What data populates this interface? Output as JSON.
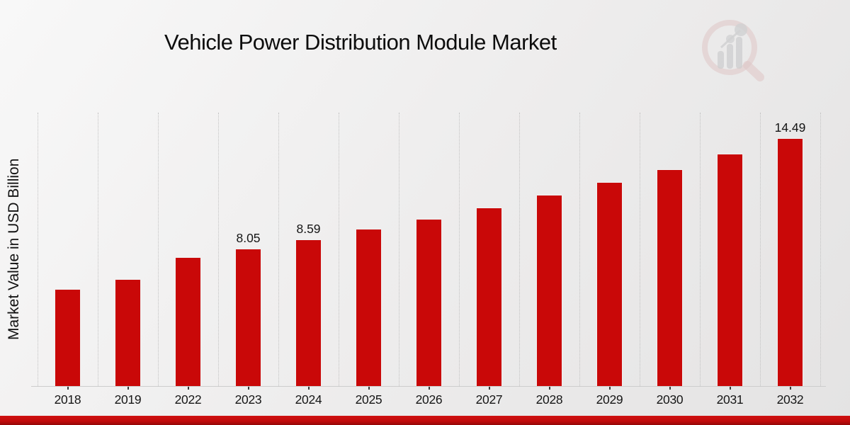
{
  "header": {
    "title": "Vehicle Power Distribution Module Market"
  },
  "y_axis": {
    "label": "Market Value in USD Billion"
  },
  "logo": {
    "name": "market-research-future-watermark"
  },
  "colors": {
    "bar": "#c90808",
    "accent_strip": "#c00b0b",
    "gridline": "#c2c2c2",
    "background": "#eeeeee",
    "text": "#141414"
  },
  "chart_data": {
    "type": "bar",
    "title": "Vehicle Power Distribution Module Market",
    "xlabel": "",
    "ylabel": "Market Value in USD Billion",
    "categories": [
      "2018",
      "2019",
      "2022",
      "2023",
      "2024",
      "2025",
      "2026",
      "2027",
      "2028",
      "2029",
      "2030",
      "2031",
      "2032"
    ],
    "values": [
      5.7,
      6.25,
      7.55,
      8.05,
      8.59,
      9.2,
      9.8,
      10.45,
      11.2,
      11.95,
      12.7,
      13.6,
      14.49
    ],
    "data_labels": {
      "2023": "8.05",
      "2024": "8.59",
      "2032": "14.49"
    },
    "ylim": [
      0,
      16
    ],
    "grid": "vertical-dotted",
    "legend": "none",
    "bar_color": "#c90808"
  }
}
